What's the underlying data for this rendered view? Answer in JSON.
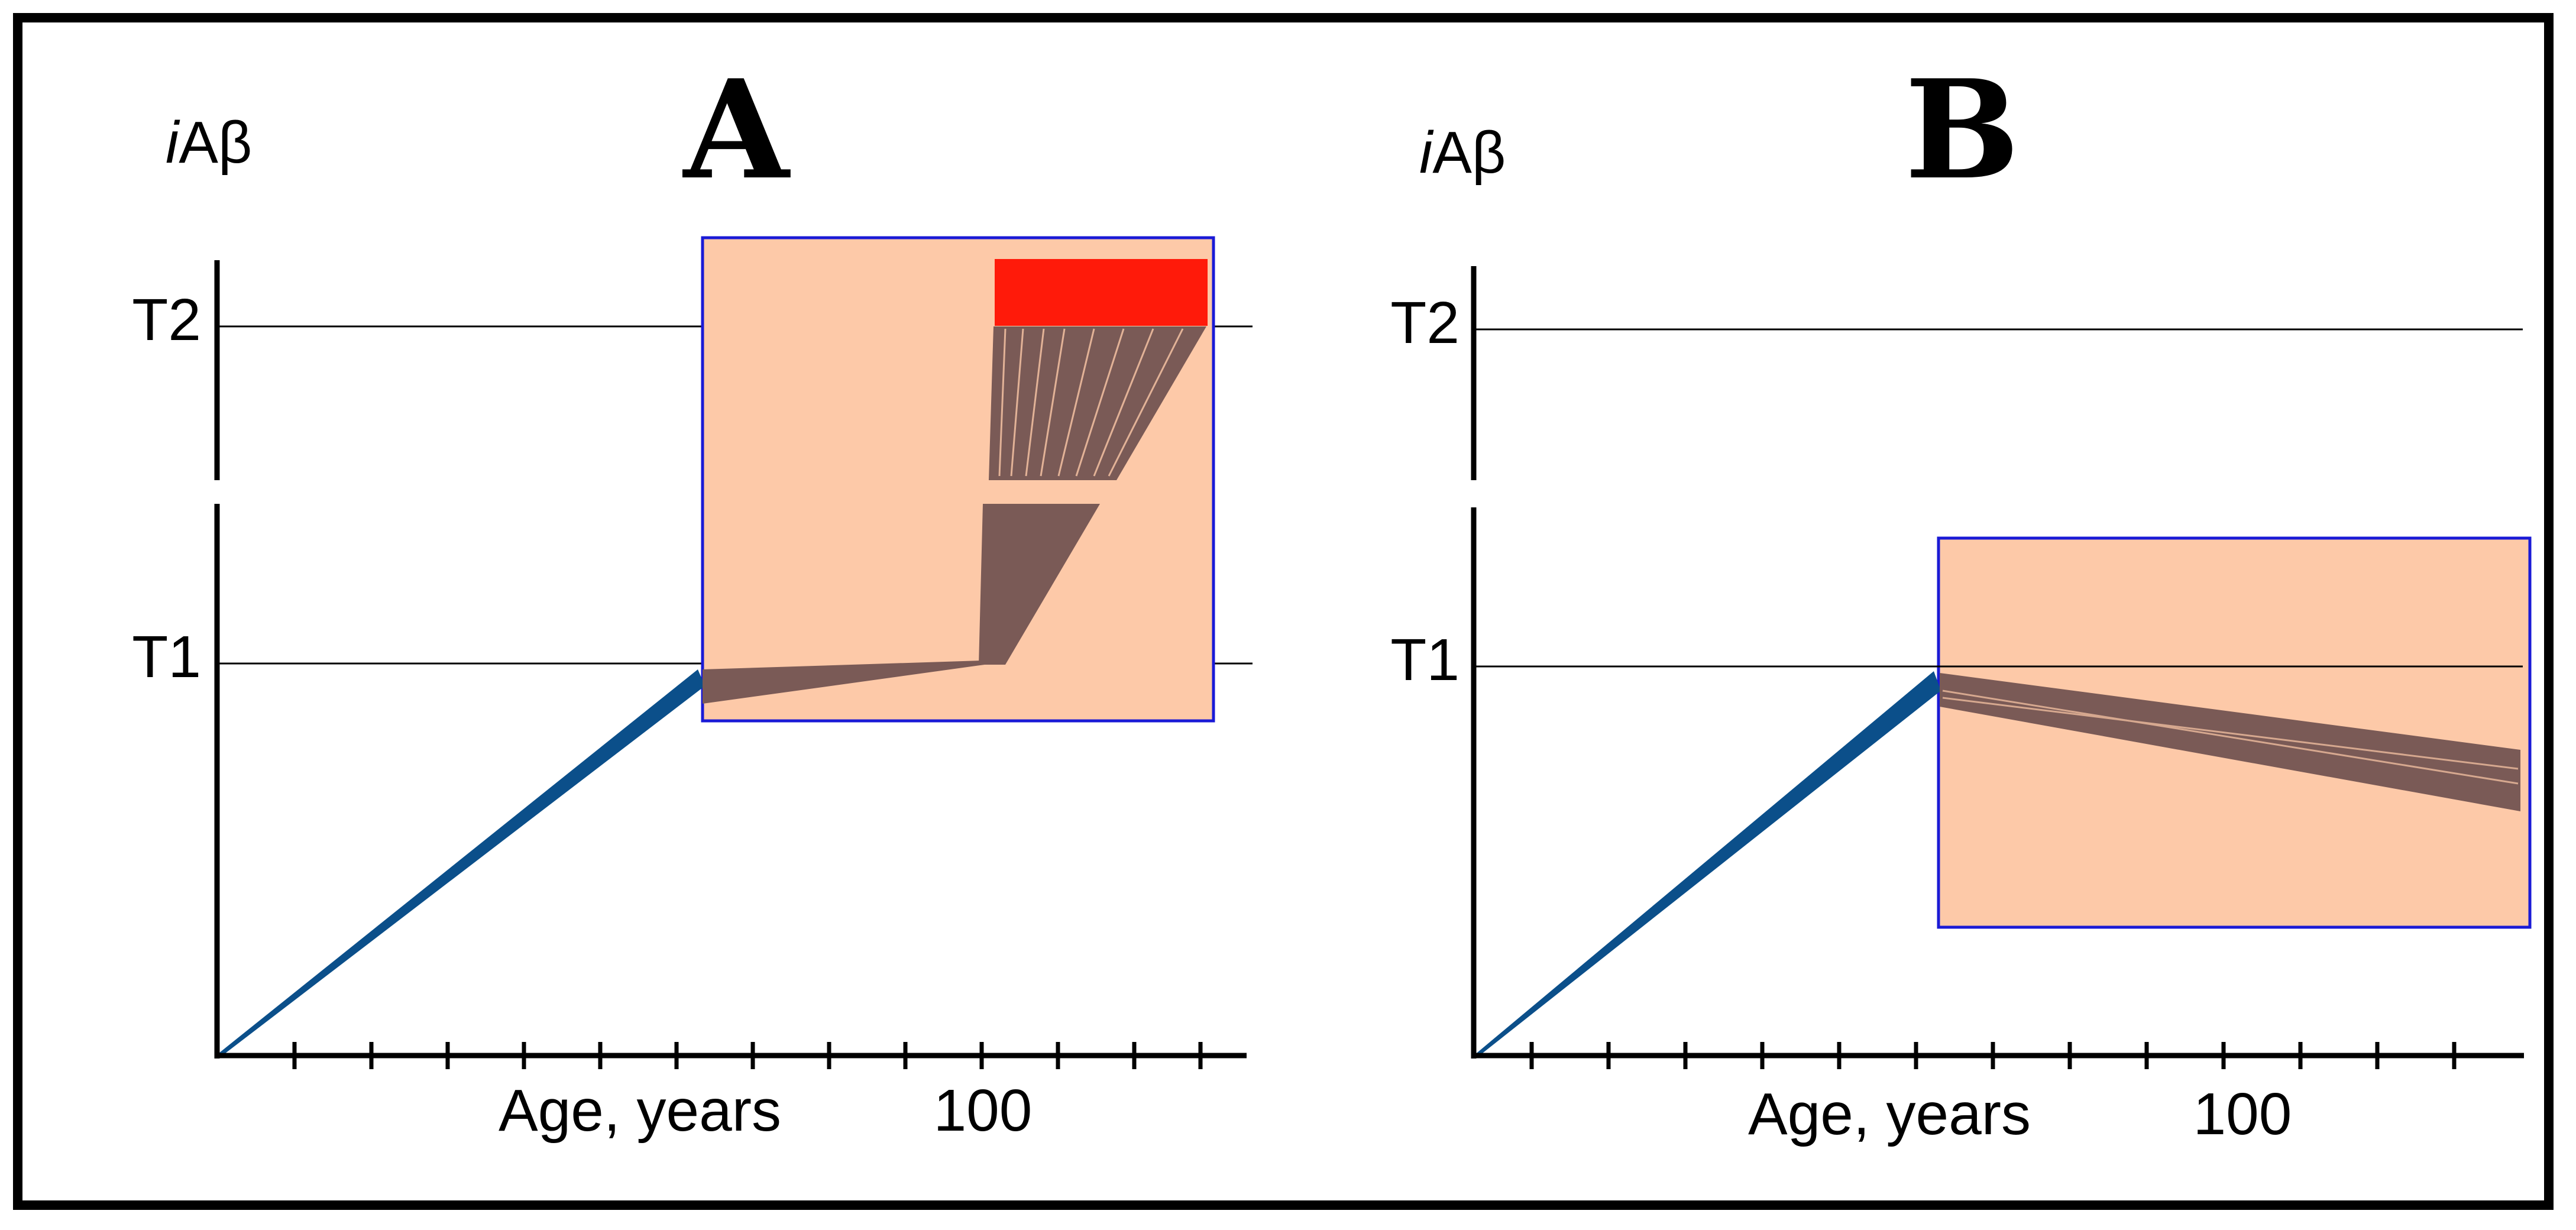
{
  "panels": [
    {
      "letter": "A",
      "ylabel_prefix": "i",
      "ylabel_main": "Aβ",
      "threshold_high": "T2",
      "threshold_low": "T1",
      "xlabel": "Age, years",
      "x_tick_label": "100"
    },
    {
      "letter": "B",
      "ylabel_prefix": "i",
      "ylabel_main": "Aβ",
      "threshold_high": "T2",
      "threshold_low": "T1",
      "xlabel": "Age, years",
      "x_tick_label": "100"
    }
  ],
  "colors": {
    "ascending_wedge": "#0b4f8a",
    "shaded_region": "#fdc9a8",
    "shaded_border": "#1a1ad6",
    "trajectories": "#7a5a56",
    "above_T2_block": "#ff1a0a"
  }
}
